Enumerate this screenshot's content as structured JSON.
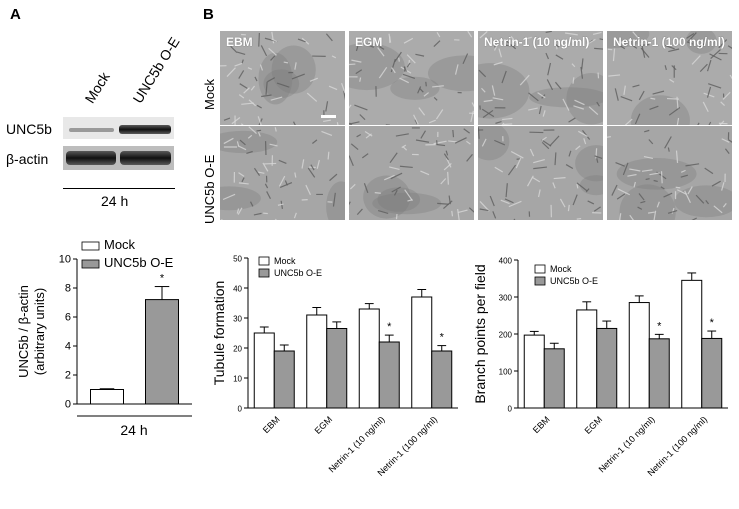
{
  "panel_a": {
    "letter": "A",
    "lanes": [
      "Mock",
      "UNC5b O-E"
    ],
    "rows": [
      "UNC5b",
      "β-actin"
    ],
    "time_label": "24 h"
  },
  "panel_b": {
    "letter": "B",
    "columns": [
      "EBM",
      "EGM",
      "Netrin-1 (10 ng/ml)",
      "Netrin-1 (100 ng/ml)"
    ],
    "rows": [
      "Mock",
      "UNC5b O-E"
    ]
  },
  "colors": {
    "mock": "#ffffff",
    "o_e": "#999999",
    "axis": "#000000"
  },
  "chart_data": [
    {
      "type": "bar",
      "categories": [
        "24 h"
      ],
      "series": [
        {
          "name": "Mock",
          "values": [
            1.0
          ],
          "errors": [
            0.05
          ],
          "color": "#ffffff"
        },
        {
          "name": "UNC5b O-E",
          "values": [
            7.2
          ],
          "errors": [
            0.9
          ],
          "color": "#999999",
          "significance": [
            "*"
          ]
        }
      ],
      "xlabel": "24 h",
      "ylabel": "UNC5b / β-actin (arbitrary units)",
      "ylim": [
        0,
        10
      ],
      "yticks": [
        "0",
        "2",
        "4",
        "6",
        "8",
        "10"
      ],
      "legend": "top"
    },
    {
      "type": "bar",
      "categories": [
        "EBM",
        "EGM",
        "Netrin-1 (10 ng/ml)",
        "Netrin-1 (100 ng/ml)"
      ],
      "series": [
        {
          "name": "Mock",
          "values": [
            25,
            31,
            33,
            37
          ],
          "errors": [
            2,
            2.5,
            1.8,
            2.5
          ],
          "color": "#ffffff"
        },
        {
          "name": "UNC5b O-E",
          "values": [
            19,
            26.5,
            22,
            19
          ],
          "errors": [
            2,
            2.2,
            2.3,
            1.8
          ],
          "color": "#999999",
          "significance": [
            "",
            "",
            "*",
            "*"
          ]
        }
      ],
      "ylabel": "Tubule formation",
      "ylim": [
        0,
        50
      ],
      "yticks": [
        "0",
        "10",
        "20",
        "30",
        "40",
        "50"
      ],
      "legend": "top-left"
    },
    {
      "type": "bar",
      "categories": [
        "EBM",
        "EGM",
        "Netrin-1 (10 ng/ml)",
        "Netrin-1 (100 ng/ml)"
      ],
      "series": [
        {
          "name": "Mock",
          "values": [
            197,
            265,
            285,
            345
          ],
          "errors": [
            10,
            22,
            18,
            20
          ],
          "color": "#ffffff"
        },
        {
          "name": "UNC5b O-E",
          "values": [
            160,
            215,
            187,
            188
          ],
          "errors": [
            15,
            20,
            12,
            20
          ],
          "color": "#999999",
          "significance": [
            "",
            "",
            "*",
            "*"
          ]
        }
      ],
      "ylabel": "Branch points per field",
      "ylim": [
        0,
        400
      ],
      "yticks": [
        "0",
        "100",
        "200",
        "300",
        "400"
      ],
      "legend": "top-left"
    }
  ]
}
